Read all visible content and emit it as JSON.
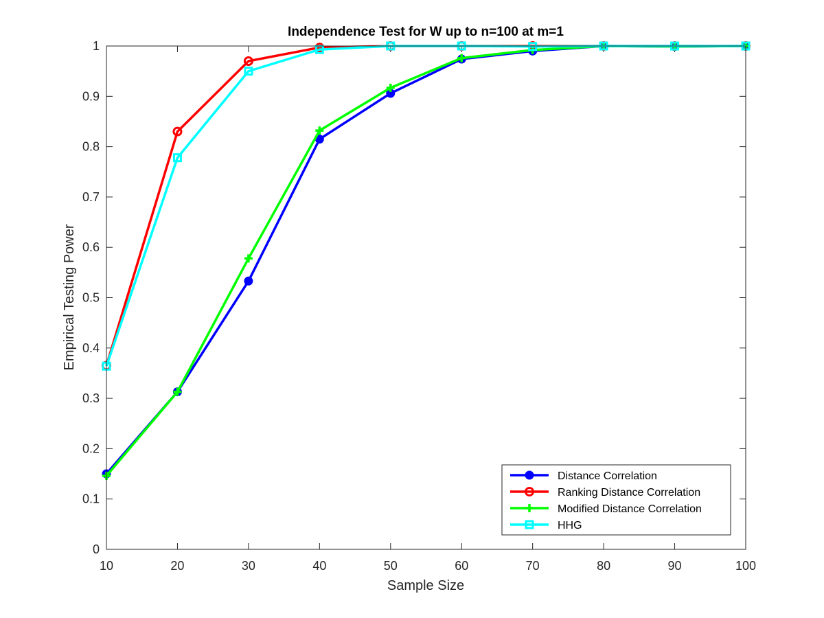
{
  "chart_data": {
    "type": "line",
    "title": "Independence Test for W up to n=100 at m=1",
    "xlabel": "Sample Size",
    "ylabel": "Empirical Testing Power",
    "xlim": [
      10,
      100
    ],
    "ylim": [
      0,
      1
    ],
    "xticks": [
      "10",
      "20",
      "30",
      "40",
      "50",
      "60",
      "70",
      "80",
      "90",
      "100"
    ],
    "yticks": [
      "0",
      "0.1",
      "0.2",
      "0.3",
      "0.4",
      "0.5",
      "0.6",
      "0.7",
      "0.8",
      "0.9",
      "1"
    ],
    "grid": false,
    "legend_position": "bottom-right",
    "x": [
      10,
      20,
      30,
      40,
      50,
      60,
      70,
      80,
      90,
      100
    ],
    "series": [
      {
        "name": "Distance Correlation",
        "color": "#0000ff",
        "marker": "filled-circle",
        "values": [
          0.15,
          0.313,
          0.533,
          0.815,
          0.906,
          0.974,
          0.99,
          1.0,
          0.999,
          1.0
        ]
      },
      {
        "name": "Ranking Distance Correlation",
        "color": "#ff0000",
        "marker": "open-circle",
        "values": [
          0.365,
          0.83,
          0.97,
          0.997,
          1.0,
          1.0,
          1.0,
          1.0,
          1.0,
          1.0
        ]
      },
      {
        "name": "Modified Distance Correlation",
        "color": "#00ff00",
        "marker": "plus",
        "values": [
          0.146,
          0.313,
          0.578,
          0.832,
          0.917,
          0.976,
          0.992,
          1.0,
          0.999,
          1.0
        ]
      },
      {
        "name": "HHG",
        "color": "#00ffff",
        "marker": "square",
        "values": [
          0.364,
          0.778,
          0.95,
          0.993,
          1.0,
          1.0,
          0.999,
          1.0,
          1.0,
          1.0
        ]
      }
    ]
  }
}
